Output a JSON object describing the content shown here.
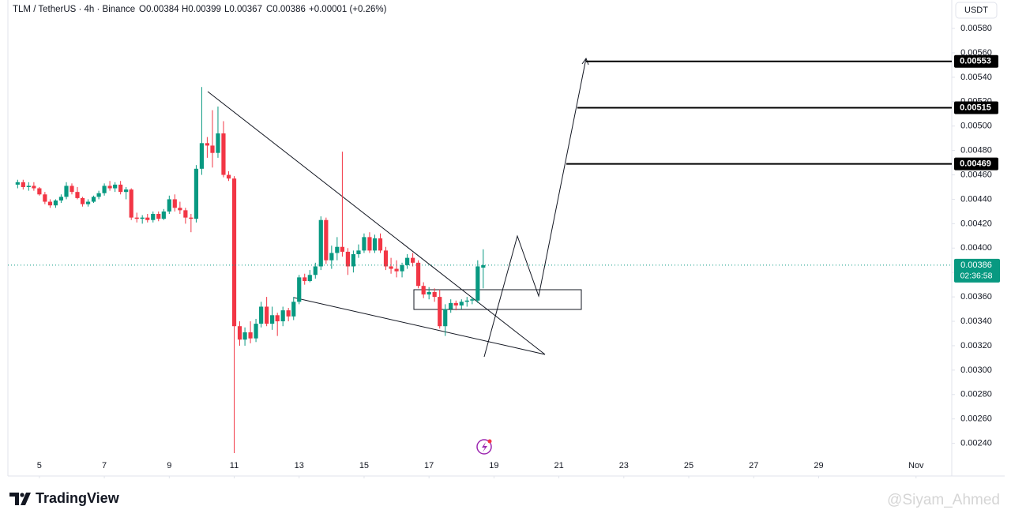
{
  "chart_data": {
    "type": "candlestick",
    "header": {
      "symbol": "TLM / TetherUS · 4h · Binance",
      "open": "O0.00384",
      "high": "H0.00399",
      "low": "L0.00367",
      "close": "C0.00386",
      "change": "+0.00001 (+0.26%)"
    },
    "currency": "USDT",
    "up_color": "#089981",
    "down_color": "#f23645",
    "xlim": [
      4.03,
      33.1
    ],
    "xticks": [
      5,
      7,
      9,
      11,
      13,
      15,
      17,
      19,
      21,
      23,
      25,
      27,
      29,
      {
        "value": 32,
        "label": "Nov"
      }
    ],
    "ylim": [
      0.002294,
      0.006033
    ],
    "yticks": [
      {
        "value": 0.0058,
        "label": "0.00580"
      },
      {
        "value": 0.0056,
        "label": "0.00560"
      },
      {
        "value": 0.0054,
        "label": "0.00540"
      },
      {
        "value": 0.0052,
        "label": "0.00520"
      },
      {
        "value": 0.005,
        "label": "0.00500"
      },
      {
        "value": 0.0048,
        "label": "0.00480"
      },
      {
        "value": 0.0046,
        "label": "0.00460"
      },
      {
        "value": 0.0044,
        "label": "0.00440"
      },
      {
        "value": 0.0042,
        "label": "0.00420"
      },
      {
        "value": 0.004,
        "label": "0.00400"
      },
      {
        "value": 0.0038,
        "label": "0.00380"
      },
      {
        "value": 0.0036,
        "label": "0.00360"
      },
      {
        "value": 0.0034,
        "label": "0.00340"
      },
      {
        "value": 0.0032,
        "label": "0.00320"
      },
      {
        "value": 0.003,
        "label": "0.00300"
      },
      {
        "value": 0.0028,
        "label": "0.00280"
      },
      {
        "value": 0.0026,
        "label": "0.00260"
      },
      {
        "value": 0.0024,
        "label": "0.00240"
      }
    ],
    "x": [
      4.33,
      4.5,
      4.67,
      4.83,
      5,
      5.17,
      5.33,
      5.5,
      5.67,
      5.83,
      6,
      6.17,
      6.33,
      6.5,
      6.67,
      6.83,
      7,
      7.17,
      7.33,
      7.5,
      7.67,
      7.83,
      8,
      8.17,
      8.33,
      8.5,
      8.67,
      8.83,
      9,
      9.17,
      9.33,
      9.5,
      9.67,
      9.83,
      10,
      10.17,
      10.33,
      10.5,
      10.67,
      10.83,
      11,
      11.17,
      11.33,
      11.5,
      11.67,
      11.83,
      12,
      12.17,
      12.33,
      12.5,
      12.67,
      12.83,
      13,
      13.17,
      13.33,
      13.5,
      13.67,
      13.83,
      14,
      14.17,
      14.33,
      14.5,
      14.67,
      14.83,
      15,
      15.17,
      15.33,
      15.5,
      15.67,
      15.83,
      16,
      16.17,
      16.33,
      16.5,
      16.67,
      16.83,
      17,
      17.17,
      17.33,
      17.5,
      17.67,
      17.83,
      18,
      18.17,
      18.33,
      18.5,
      18.67
    ],
    "candles": [
      [
        0.00452,
        0.00456,
        0.00449,
        0.00454
      ],
      [
        0.00454,
        0.00456,
        0.00448,
        0.0045
      ],
      [
        0.0045,
        0.00454,
        0.00447,
        0.00451
      ],
      [
        0.00451,
        0.00454,
        0.00447,
        0.00449
      ],
      [
        0.00449,
        0.0045,
        0.00443,
        0.00444
      ],
      [
        0.00444,
        0.00446,
        0.00436,
        0.00438
      ],
      [
        0.00438,
        0.0044,
        0.00433,
        0.00435
      ],
      [
        0.00435,
        0.0044,
        0.00433,
        0.00439
      ],
      [
        0.00439,
        0.00444,
        0.00437,
        0.00442
      ],
      [
        0.00442,
        0.00454,
        0.0044,
        0.00451
      ],
      [
        0.00451,
        0.00453,
        0.00444,
        0.00446
      ],
      [
        0.00446,
        0.0045,
        0.0044,
        0.00441
      ],
      [
        0.00441,
        0.00442,
        0.00434,
        0.00436
      ],
      [
        0.00436,
        0.0044,
        0.00434,
        0.00438
      ],
      [
        0.00438,
        0.00443,
        0.00437,
        0.00442
      ],
      [
        0.00442,
        0.00447,
        0.0044,
        0.00445
      ],
      [
        0.00445,
        0.00453,
        0.00443,
        0.00451
      ],
      [
        0.00451,
        0.00455,
        0.00447,
        0.00449
      ],
      [
        0.00449,
        0.00454,
        0.00446,
        0.00452
      ],
      [
        0.00452,
        0.00455,
        0.00444,
        0.00446
      ],
      [
        0.00446,
        0.0045,
        0.0044,
        0.00448
      ],
      [
        0.00448,
        0.00449,
        0.00423,
        0.00425
      ],
      [
        0.00425,
        0.00429,
        0.00421,
        0.00424
      ],
      [
        0.00424,
        0.00427,
        0.0042,
        0.00425
      ],
      [
        0.00425,
        0.00428,
        0.00421,
        0.00423
      ],
      [
        0.00423,
        0.0043,
        0.00421,
        0.00428
      ],
      [
        0.00428,
        0.0043,
        0.00422,
        0.00424
      ],
      [
        0.00424,
        0.00432,
        0.00423,
        0.0043
      ],
      [
        0.0043,
        0.00443,
        0.00428,
        0.0044
      ],
      [
        0.0044,
        0.00444,
        0.0043,
        0.00433
      ],
      [
        0.00433,
        0.00438,
        0.00428,
        0.00431
      ],
      [
        0.00431,
        0.00433,
        0.0042,
        0.00425
      ],
      [
        0.00425,
        0.00428,
        0.00413,
        0.00424
      ],
      [
        0.00424,
        0.00468,
        0.00421,
        0.00465
      ],
      [
        0.00465,
        0.00532,
        0.0046,
        0.00486
      ],
      [
        0.00486,
        0.00491,
        0.00474,
        0.00484
      ],
      [
        0.00484,
        0.00513,
        0.00466,
        0.00478
      ],
      [
        0.00478,
        0.00516,
        0.00474,
        0.00494
      ],
      [
        0.00494,
        0.00504,
        0.00458,
        0.0046
      ],
      [
        0.0046,
        0.00463,
        0.00455,
        0.00457
      ],
      [
        0.00457,
        0.00459,
        0.00232,
        0.00336
      ],
      [
        0.00336,
        0.0034,
        0.0032,
        0.00325
      ],
      [
        0.00325,
        0.00335,
        0.0032,
        0.00331
      ],
      [
        0.00331,
        0.0034,
        0.00322,
        0.00326
      ],
      [
        0.00326,
        0.00342,
        0.00323,
        0.00338
      ],
      [
        0.00338,
        0.00356,
        0.00335,
        0.00352
      ],
      [
        0.00352,
        0.0036,
        0.00336,
        0.00338
      ],
      [
        0.00338,
        0.00352,
        0.00333,
        0.00345
      ],
      [
        0.00345,
        0.00347,
        0.00328,
        0.0034
      ],
      [
        0.0034,
        0.00352,
        0.00336,
        0.00349
      ],
      [
        0.00349,
        0.00351,
        0.0034,
        0.00344
      ],
      [
        0.00344,
        0.0036,
        0.00341,
        0.00356
      ],
      [
        0.00356,
        0.00378,
        0.00354,
        0.00376
      ],
      [
        0.00376,
        0.00379,
        0.0037,
        0.00373
      ],
      [
        0.00373,
        0.00382,
        0.00372,
        0.00378
      ],
      [
        0.00378,
        0.00388,
        0.00375,
        0.00385
      ],
      [
        0.00385,
        0.00426,
        0.00382,
        0.00423
      ],
      [
        0.00423,
        0.00425,
        0.00387,
        0.0039
      ],
      [
        0.0039,
        0.00402,
        0.00383,
        0.00396
      ],
      [
        0.00396,
        0.00409,
        0.0039,
        0.00401
      ],
      [
        0.00401,
        0.00479,
        0.00393,
        0.00397
      ],
      [
        0.00397,
        0.004,
        0.00378,
        0.00385
      ],
      [
        0.00385,
        0.00398,
        0.0038,
        0.00395
      ],
      [
        0.00395,
        0.00403,
        0.00392,
        0.00398
      ],
      [
        0.00398,
        0.00412,
        0.00396,
        0.00409
      ],
      [
        0.00409,
        0.00413,
        0.00396,
        0.00398
      ],
      [
        0.00398,
        0.00411,
        0.00396,
        0.00408
      ],
      [
        0.00408,
        0.00412,
        0.00396,
        0.00398
      ],
      [
        0.00398,
        0.00401,
        0.00382,
        0.00385
      ],
      [
        0.00385,
        0.00392,
        0.00379,
        0.00383
      ],
      [
        0.00383,
        0.0039,
        0.00376,
        0.00381
      ],
      [
        0.00381,
        0.00388,
        0.00376,
        0.00386
      ],
      [
        0.00386,
        0.00395,
        0.00383,
        0.00392
      ],
      [
        0.00392,
        0.00396,
        0.00385,
        0.00388
      ],
      [
        0.00388,
        0.0039,
        0.00367,
        0.00369
      ],
      [
        0.00369,
        0.00372,
        0.00359,
        0.00362
      ],
      [
        0.00362,
        0.00368,
        0.00358,
        0.00364
      ],
      [
        0.00364,
        0.00367,
        0.00356,
        0.0036
      ],
      [
        0.0036,
        0.00366,
        0.00334,
        0.00336
      ],
      [
        0.00336,
        0.00354,
        0.00328,
        0.0035
      ],
      [
        0.0035,
        0.00358,
        0.00347,
        0.00355
      ],
      [
        0.00355,
        0.00357,
        0.00349,
        0.00353
      ],
      [
        0.00353,
        0.00358,
        0.0035,
        0.00356
      ],
      [
        0.00356,
        0.0036,
        0.00352,
        0.00357
      ],
      [
        0.00357,
        0.0036,
        0.00354,
        0.00358
      ],
      [
        0.00357,
        0.0039,
        0.00355,
        0.00385
      ],
      [
        0.00384,
        0.00399,
        0.00367,
        0.00386
      ]
    ],
    "levels": {
      "color": "#000000",
      "values": [
        0.00553,
        0.00515,
        0.00469
      ],
      "value_labels": [
        "0.00553",
        "0.00515",
        "0.00469"
      ]
    },
    "price_line": {
      "values": [
        0.00386
      ],
      "value_labels": [
        "0.00386"
      ],
      "countdown": "02:36:58"
    },
    "brand": "TradingView",
    "watermark": "@Siyam_Ahmed"
  }
}
